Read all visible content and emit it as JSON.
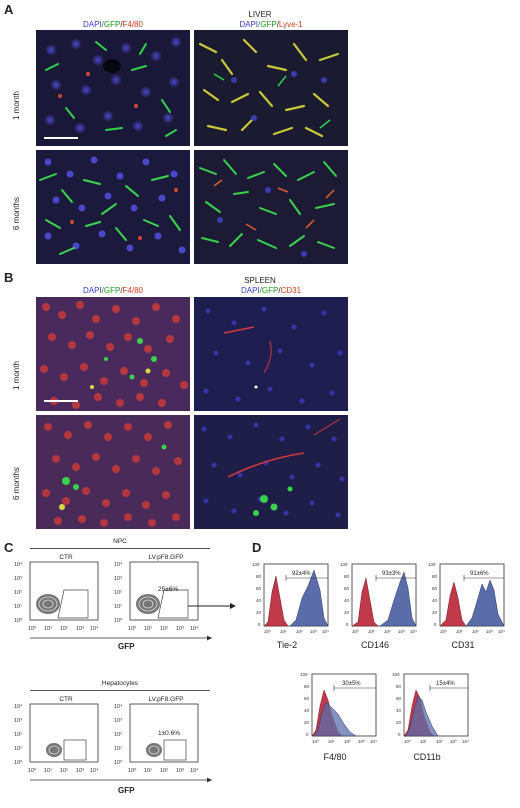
{
  "panel_a": {
    "letter": "A",
    "title": "LIVER",
    "col_labels": [
      {
        "dapi": "DAPI",
        "gfp": "/GFP",
        "sep": "/",
        "marker": "F4/80"
      },
      {
        "dapi": "DAPI",
        "gfp": "/GFP",
        "sep": "/",
        "marker": "Lyve-1"
      }
    ],
    "row_labels": [
      "1 month",
      "6 months"
    ]
  },
  "panel_b": {
    "letter": "B",
    "title": "SPLEEN",
    "col_labels": [
      {
        "dapi": "DAPI",
        "gfp": "/GFP",
        "sep": "/",
        "marker": "F4/80"
      },
      {
        "dapi": "DAPI",
        "gfp": "/GFP",
        "sep": "/",
        "marker": "CD31"
      }
    ],
    "row_labels": [
      "1 month",
      "6 months"
    ]
  },
  "panel_c": {
    "letter": "C",
    "npc_title": "NPC",
    "hep_title": "Hepatocytes",
    "ctr": "CTR",
    "lv": "LV.pF8.GFP",
    "npc_pct": "25±6%",
    "hep_pct": "1±0.6%",
    "xlabel": "GFP",
    "ticks": [
      "10⁰",
      "10¹",
      "10²",
      "10³",
      "10⁴"
    ]
  },
  "panel_d": {
    "letter": "D",
    "histograms": [
      {
        "marker": "Tie-2",
        "pct": "92±4%"
      },
      {
        "marker": "CD146",
        "pct": "93±3%"
      },
      {
        "marker": "CD31",
        "pct": "91±6%"
      },
      {
        "marker": "F4/80",
        "pct": "30±5%"
      },
      {
        "marker": "CD11b",
        "pct": "15±4%"
      }
    ],
    "yticks": [
      "0",
      "20",
      "40",
      "60",
      "80",
      "100"
    ]
  },
  "colors": {
    "dapi": "#3a3ad0",
    "gfp": "#1a9a1a",
    "marker": "#d23a1a",
    "red_hist": "#c0394a",
    "blue_hist": "#5a6da8"
  }
}
